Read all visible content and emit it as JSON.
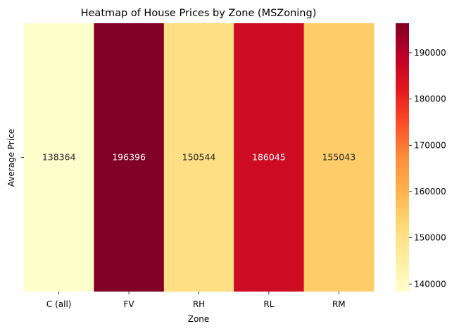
{
  "chart_data": {
    "type": "heatmap",
    "title": "Heatmap of House Prices by Zone (MSZoning)",
    "xlabel": "Zone",
    "ylabel": "",
    "x_categories": [
      "C (all)",
      "FV",
      "RH",
      "RL",
      "RM"
    ],
    "y_categories": [
      "Average Price"
    ],
    "values": [
      [
        138364,
        196396,
        150544,
        186045,
        155043
      ]
    ],
    "annotations": [
      "138364",
      "196396",
      "150544",
      "186045",
      "155043"
    ],
    "colorbar": {
      "range": [
        138364,
        196396
      ],
      "ticks": [
        140000,
        150000,
        160000,
        170000,
        180000,
        190000
      ],
      "tick_labels": [
        "140000",
        "150000",
        "160000",
        "170000",
        "180000",
        "190000"
      ],
      "colormap": "YlOrRd"
    },
    "colors": [
      "#ffffcc",
      "#ffeda0",
      "#fed976",
      "#feb24c",
      "#fd8d3c",
      "#fc4e2a",
      "#e31a1c",
      "#bd0026",
      "#800026"
    ],
    "grid": false,
    "legend": "none"
  }
}
